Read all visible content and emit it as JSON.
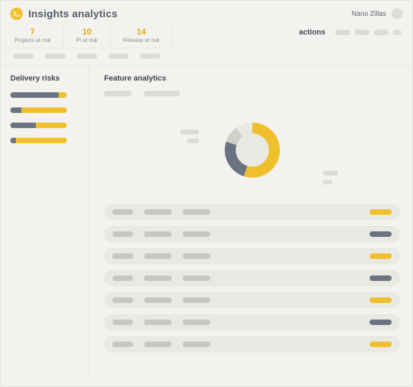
{
  "colors": {
    "accent_yellow": "#f0c02c",
    "slate": "#697381",
    "placeholder": "#dcdbd4",
    "placeholder_dark": "#c7c6bf",
    "row_bg": "#e9e8e2",
    "text_dark": "#3d4650",
    "text_muted": "#8a8f96",
    "page_bg": "#f3f2ee",
    "light_gray": "#d0cfc8"
  },
  "header": {
    "title": "Insights analytics",
    "user_name": "Nano Zillas"
  },
  "risk_summary": [
    {
      "value": "7",
      "label": "Projects at risk"
    },
    {
      "value": "10",
      "label": "PI at risk"
    },
    {
      "value": "14",
      "label": "Release at risk"
    }
  ],
  "actions": {
    "label": "actions",
    "pill_count": 4
  },
  "sub_pills": {
    "count": 5
  },
  "sidebar": {
    "title": "Delivery risks",
    "bars": [
      {
        "fill_pct": 85
      },
      {
        "fill_pct": 20
      },
      {
        "fill_pct": 45
      },
      {
        "fill_pct": 10
      }
    ]
  },
  "main": {
    "title": "Feature analytics",
    "donut": {
      "type": "donut",
      "segments": [
        {
          "color": "#f0c02c",
          "pct": 55
        },
        {
          "color": "#697381",
          "pct": 25
        },
        {
          "color": "#d0cfc8",
          "pct": 10
        },
        {
          "color": "#e9e8e2",
          "pct": 10
        }
      ],
      "outer_radius": 40,
      "inner_radius": 24,
      "center_color": "#e9e8e2"
    },
    "rows": [
      {
        "status_color": "#f0c02c"
      },
      {
        "status_color": "#697381"
      },
      {
        "status_color": "#f0c02c"
      },
      {
        "status_color": "#697381"
      },
      {
        "status_color": "#f0c02c"
      },
      {
        "status_color": "#697381"
      },
      {
        "status_color": "#f0c02c"
      }
    ]
  }
}
